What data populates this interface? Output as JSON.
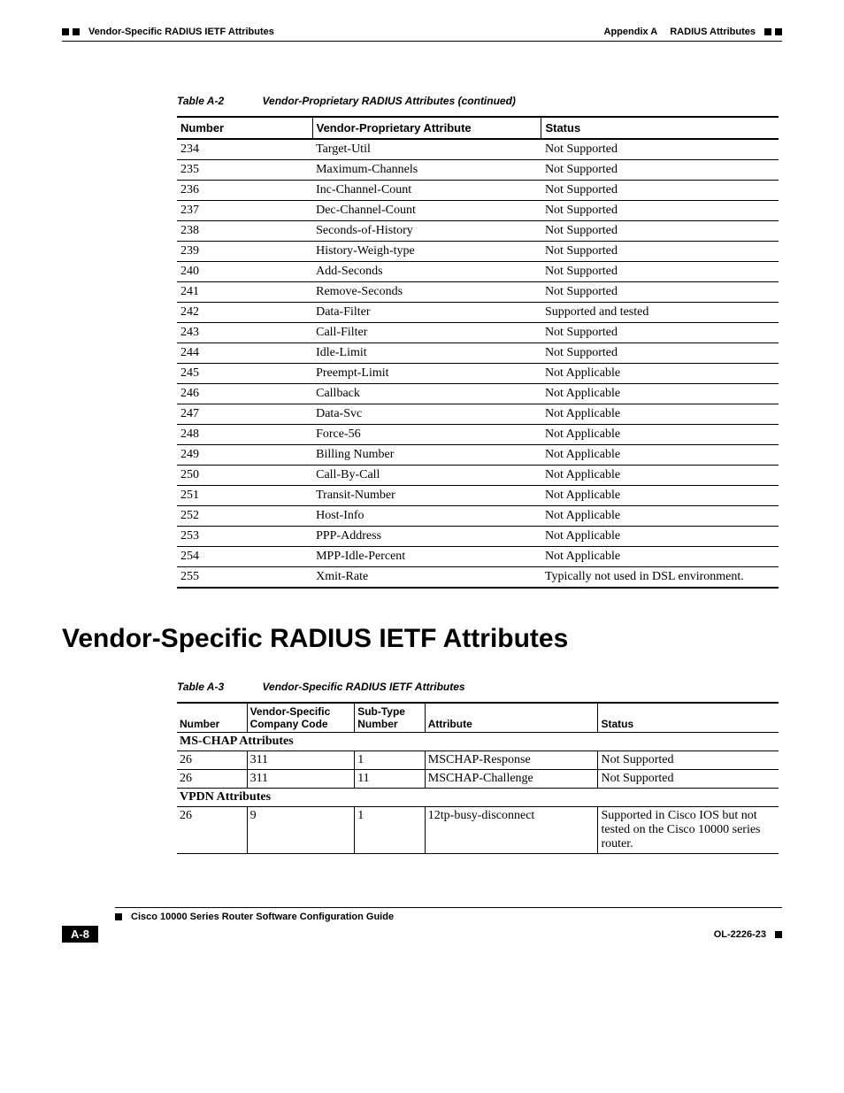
{
  "header": {
    "left": "Vendor-Specific RADIUS IETF Attributes",
    "right_prefix": "Appendix A",
    "right_title": "RADIUS Attributes"
  },
  "table1": {
    "caption_label": "Table A-2",
    "caption_title": "Vendor-Proprietary RADIUS Attributes (continued)",
    "columns": [
      "Number",
      "Vendor-Proprietary Attribute",
      "Status"
    ],
    "col_widths": [
      "150px",
      "260px",
      "270px"
    ],
    "rows": [
      [
        "234",
        "Target-Util",
        "Not Supported"
      ],
      [
        "235",
        "Maximum-Channels",
        "Not Supported"
      ],
      [
        "236",
        "Inc-Channel-Count",
        "Not Supported"
      ],
      [
        "237",
        "Dec-Channel-Count",
        "Not Supported"
      ],
      [
        "238",
        "Seconds-of-History",
        "Not Supported"
      ],
      [
        "239",
        "History-Weigh-type",
        "Not Supported"
      ],
      [
        "240",
        "Add-Seconds",
        "Not Supported"
      ],
      [
        "241",
        "Remove-Seconds",
        "Not Supported"
      ],
      [
        "242",
        "Data-Filter",
        "Supported and tested"
      ],
      [
        "243",
        "Call-Filter",
        "Not Supported"
      ],
      [
        "244",
        "Idle-Limit",
        "Not Supported"
      ],
      [
        "245",
        "Preempt-Limit",
        "Not Applicable"
      ],
      [
        "246",
        "Callback",
        "Not Applicable"
      ],
      [
        "247",
        "Data-Svc",
        "Not Applicable"
      ],
      [
        "248",
        "Force-56",
        "Not Applicable"
      ],
      [
        "249",
        "Billing Number",
        "Not Applicable"
      ],
      [
        "250",
        "Call-By-Call",
        "Not Applicable"
      ],
      [
        "251",
        "Transit-Number",
        "Not Applicable"
      ],
      [
        "252",
        "Host-Info",
        "Not Applicable"
      ],
      [
        "253",
        "PPP-Address",
        "Not Applicable"
      ],
      [
        "254",
        "MPP-Idle-Percent",
        "Not Applicable"
      ],
      [
        "255",
        "Xmit-Rate",
        "Typically not used in DSL environment."
      ]
    ]
  },
  "section_heading": "Vendor-Specific RADIUS IETF Attributes",
  "table2": {
    "caption_label": "Table A-3",
    "caption_title": "Vendor-Specific RADIUS IETF Attributes",
    "columns": [
      "Number",
      "Vendor-Specific Company Code",
      "Sub-Type Number",
      "Attribute",
      "Status"
    ],
    "col_widths": [
      "75px",
      "120px",
      "75px",
      "200px",
      "210px"
    ],
    "groups": [
      {
        "label": "MS-CHAP Attributes",
        "rows": [
          [
            "26",
            "311",
            "1",
            "MSCHAP-Response",
            "Not Supported"
          ],
          [
            "26",
            "311",
            "11",
            "MSCHAP-Challenge",
            "Not Supported"
          ]
        ]
      },
      {
        "label": "VPDN Attributes",
        "rows": [
          [
            "26",
            "9",
            "1",
            "12tp-busy-disconnect",
            "Supported in Cisco IOS but not tested on the Cisco 10000 series router."
          ]
        ]
      }
    ]
  },
  "footer": {
    "guide": "Cisco 10000 Series Router Software Configuration Guide",
    "page": "A-8",
    "doc": "OL-2226-23"
  }
}
